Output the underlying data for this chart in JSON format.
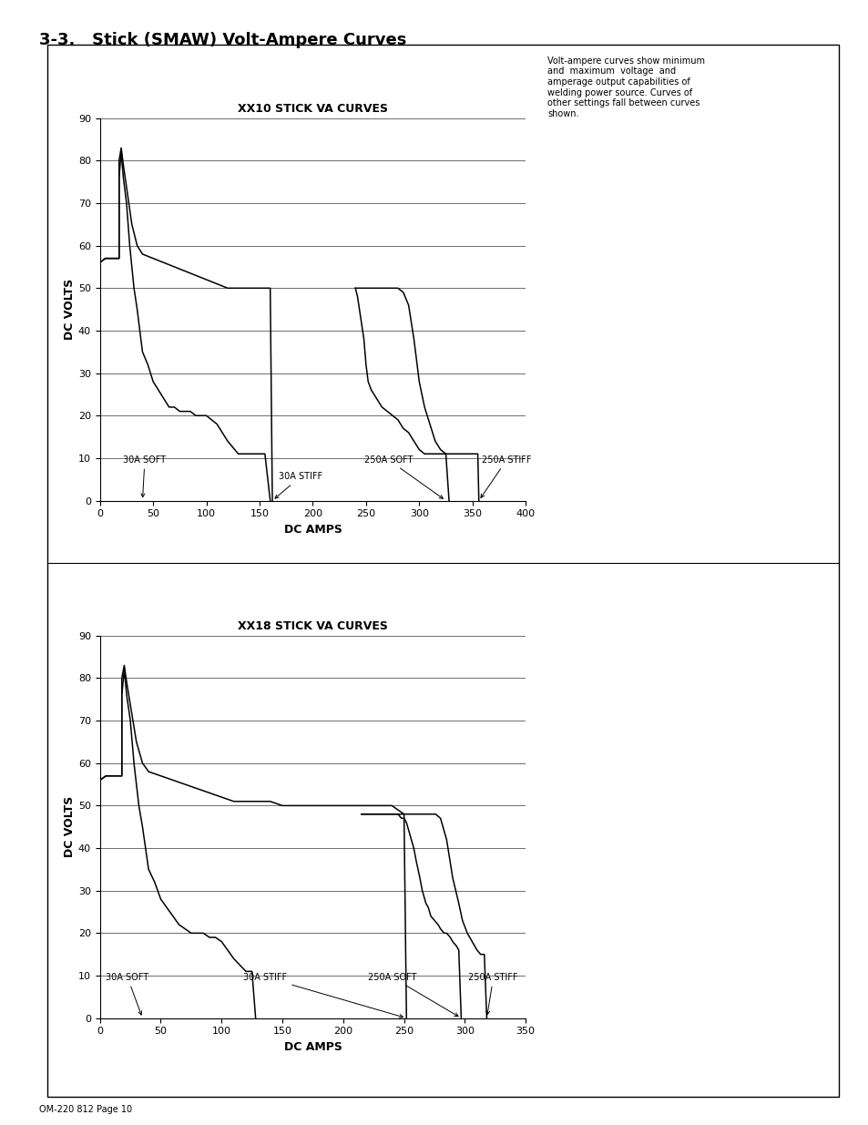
{
  "title": "3-3.   Stick (SMAW) Volt-Ampere Curves",
  "page_label": "OM-220 812 Page 10",
  "side_text": "Volt-ampere curves show minimum\nand  maximum  voltage  and\namperage output capabilities of\nwelding power source. Curves of\nother settings fall between curves\nshown.",
  "chart1_title": "XX10 STICK VA CURVES",
  "chart2_title": "XX18 STICK VA CURVES",
  "xlabel": "DC AMPS",
  "ylabel": "DC VOLTS",
  "chart1_xlim": [
    0,
    400
  ],
  "chart1_ylim": [
    0,
    90
  ],
  "chart2_xlim": [
    0,
    350
  ],
  "chart2_ylim": [
    0,
    90
  ],
  "chart1_xticks": [
    0,
    50,
    100,
    150,
    200,
    250,
    300,
    350,
    400
  ],
  "chart1_yticks": [
    0,
    10,
    20,
    30,
    40,
    50,
    60,
    70,
    80,
    90
  ],
  "chart2_xticks": [
    0,
    50,
    100,
    150,
    200,
    250,
    300,
    350
  ],
  "chart2_yticks": [
    0,
    10,
    20,
    30,
    40,
    50,
    60,
    70,
    80,
    90
  ],
  "curve1_30A_soft_x": [
    0,
    5,
    18,
    18,
    20,
    22,
    25,
    28,
    32,
    35,
    40,
    45,
    50,
    55,
    60,
    65,
    70,
    75,
    80,
    85,
    90,
    95,
    100,
    110,
    120,
    130,
    140,
    150,
    155,
    160
  ],
  "curve1_30A_soft_y": [
    56,
    57,
    57,
    76,
    82,
    76,
    70,
    60,
    50,
    45,
    35,
    32,
    28,
    26,
    24,
    22,
    22,
    21,
    21,
    21,
    20,
    20,
    20,
    18,
    14,
    11,
    11,
    11,
    11,
    0
  ],
  "curve1_30A_stiff_x": [
    0,
    5,
    18,
    18,
    20,
    22,
    26,
    30,
    35,
    40,
    50,
    60,
    70,
    80,
    90,
    100,
    110,
    120,
    130,
    140,
    150,
    160,
    162
  ],
  "curve1_30A_stiff_y": [
    56,
    57,
    57,
    80,
    83,
    79,
    72,
    65,
    60,
    58,
    57,
    56,
    55,
    54,
    53,
    52,
    51,
    50,
    50,
    50,
    50,
    50,
    0
  ],
  "curve1_250A_soft_x": [
    240,
    242,
    245,
    248,
    250,
    252,
    255,
    260,
    265,
    270,
    275,
    280,
    285,
    290,
    295,
    300,
    305,
    310,
    315,
    320,
    322,
    325,
    328
  ],
  "curve1_250A_soft_y": [
    50,
    48,
    43,
    38,
    32,
    28,
    26,
    24,
    22,
    21,
    20,
    19,
    17,
    16,
    14,
    12,
    11,
    11,
    11,
    11,
    11,
    11,
    0
  ],
  "curve1_250A_stiff_x": [
    240,
    250,
    260,
    270,
    280,
    285,
    290,
    295,
    300,
    305,
    310,
    315,
    320,
    325,
    330,
    335,
    340,
    345,
    350,
    355,
    356
  ],
  "curve1_250A_stiff_y": [
    50,
    50,
    50,
    50,
    50,
    49,
    46,
    38,
    28,
    22,
    18,
    14,
    12,
    11,
    11,
    11,
    11,
    11,
    11,
    11,
    0
  ],
  "curve2_30A_soft_x": [
    0,
    5,
    18,
    18,
    20,
    22,
    25,
    28,
    32,
    35,
    40,
    45,
    50,
    55,
    60,
    65,
    70,
    75,
    80,
    85,
    90,
    95,
    100,
    110,
    120,
    125,
    128
  ],
  "curve2_30A_soft_y": [
    56,
    57,
    57,
    76,
    82,
    76,
    70,
    60,
    50,
    45,
    35,
    32,
    28,
    26,
    24,
    22,
    21,
    20,
    20,
    20,
    19,
    19,
    18,
    14,
    11,
    11,
    0
  ],
  "curve2_30A_stiff_x": [
    0,
    5,
    18,
    18,
    20,
    22,
    26,
    30,
    35,
    40,
    50,
    60,
    70,
    80,
    90,
    100,
    110,
    120,
    130,
    140,
    150,
    160,
    170,
    180,
    190,
    200,
    210,
    220,
    230,
    240,
    250,
    252
  ],
  "curve2_30A_stiff_y": [
    56,
    57,
    57,
    80,
    83,
    79,
    72,
    65,
    60,
    58,
    57,
    56,
    55,
    54,
    53,
    52,
    51,
    51,
    51,
    51,
    50,
    50,
    50,
    50,
    50,
    50,
    50,
    50,
    50,
    50,
    48,
    0
  ],
  "curve2_250A_soft_x": [
    215,
    220,
    225,
    230,
    235,
    240,
    245,
    248,
    250,
    252,
    255,
    258,
    260,
    263,
    265,
    268,
    270,
    272,
    275,
    278,
    280,
    283,
    285,
    288,
    290,
    293,
    295,
    297
  ],
  "curve2_250A_soft_y": [
    48,
    48,
    48,
    48,
    48,
    48,
    48,
    47,
    47,
    46,
    43,
    40,
    37,
    33,
    30,
    27,
    26,
    24,
    23,
    22,
    21,
    20,
    20,
    19,
    18,
    17,
    16,
    0
  ],
  "curve2_250A_stiff_x": [
    215,
    225,
    235,
    245,
    252,
    258,
    263,
    268,
    272,
    276,
    280,
    285,
    290,
    295,
    298,
    302,
    306,
    310,
    313,
    316,
    318
  ],
  "curve2_250A_stiff_y": [
    48,
    48,
    48,
    48,
    48,
    48,
    48,
    48,
    48,
    48,
    47,
    42,
    33,
    27,
    23,
    20,
    18,
    16,
    15,
    15,
    0
  ],
  "background_color": "#ffffff",
  "line_color": "#000000",
  "fontsize_chart_title": 9,
  "fontsize_axis_label": 9,
  "fontsize_tick": 8,
  "fontsize_annotation": 7,
  "fontsize_heading": 13,
  "fontsize_side_text": 7,
  "fontsize_page_label": 7
}
